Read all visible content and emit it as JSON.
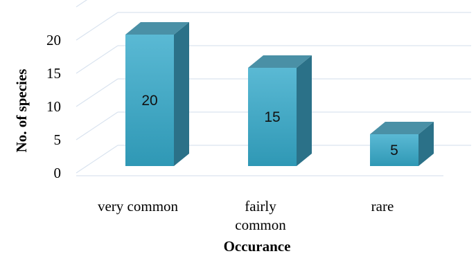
{
  "chart_data": {
    "type": "bar",
    "categories": [
      "very common",
      "fairly common",
      "rare"
    ],
    "category_lines": [
      [
        "very common"
      ],
      [
        "fairly",
        "common"
      ],
      [
        "rare"
      ]
    ],
    "values": [
      20,
      15,
      5
    ],
    "data_labels": [
      "20",
      "15",
      "5"
    ],
    "xlabel": "Occurance",
    "ylabel": "No. of species",
    "ylim": [
      0,
      25
    ],
    "yticks": [
      "0",
      "5",
      "10",
      "15",
      "20"
    ],
    "grid": true,
    "style": "3d-column",
    "colors": {
      "front": "#3fa6c4",
      "side": "#2b7188",
      "top": "#4a90a6",
      "grid": "#d9e3ef"
    }
  }
}
